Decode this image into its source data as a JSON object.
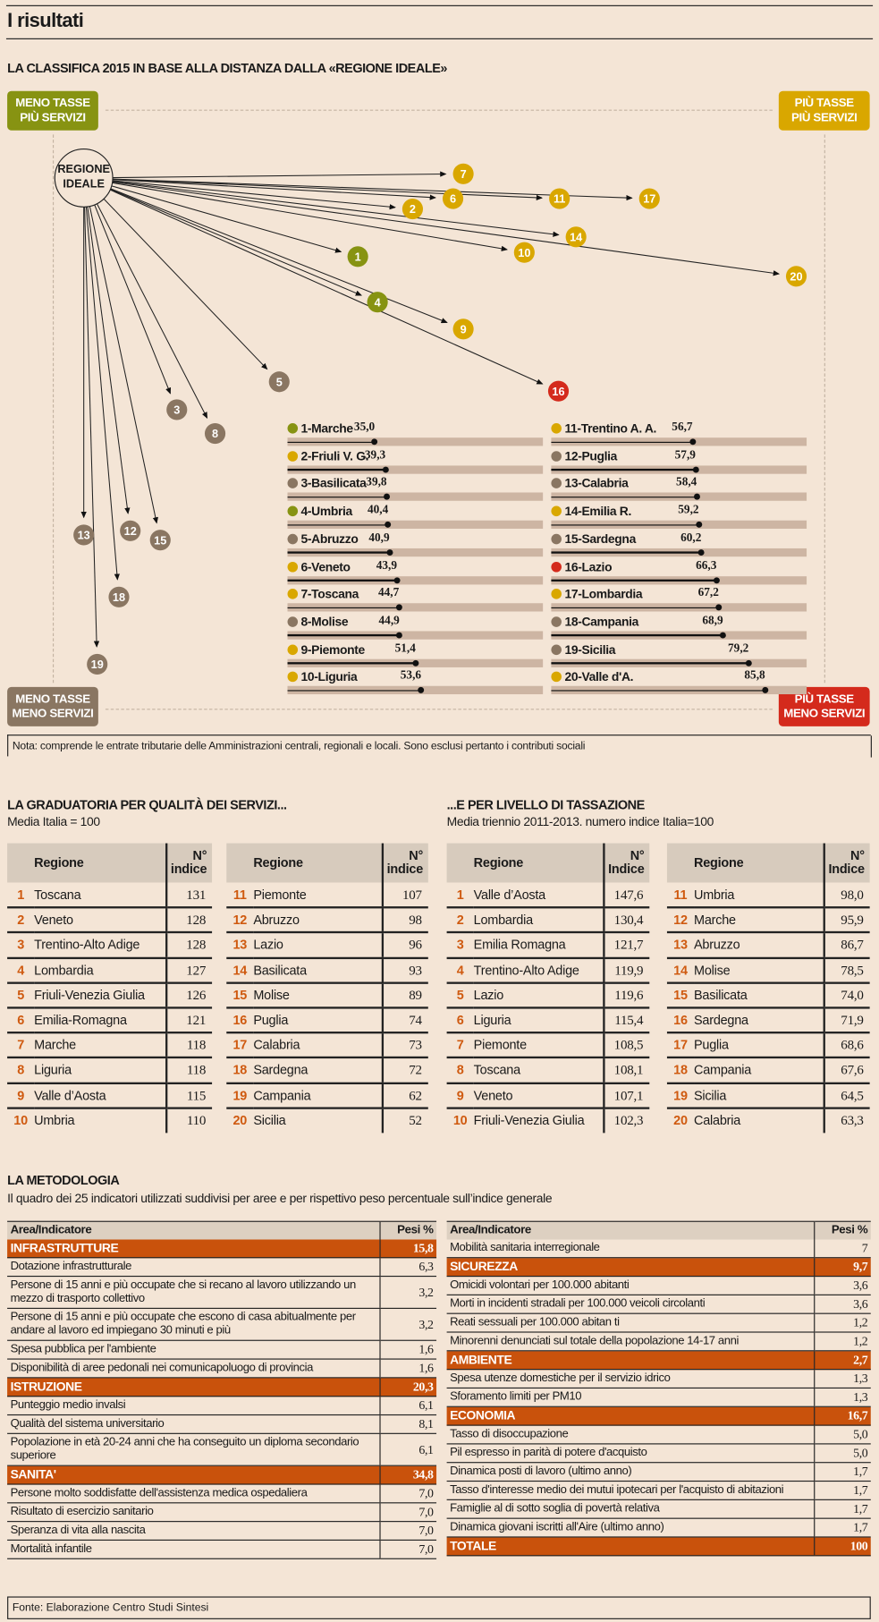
{
  "header": {
    "title": "I risultati"
  },
  "classifica": {
    "title": "LA CLASSIFICA 2015 IN BASE ALLA DISTANZA DALLA «REGIONE IDEALE»",
    "origin_label": [
      "REGIONE",
      "IDEALE"
    ],
    "corners": {
      "top_left": {
        "line1": "MENO TASSE",
        "line2": "PIÙ SERVIZI",
        "color": "#879312"
      },
      "top_right": {
        "line1": "PIÙ TASSE",
        "line2": "PIÙ SERVIZI",
        "color": "#d9a700"
      },
      "bottom_left": {
        "line1": "MENO TASSE",
        "line2": "MENO SERVIZI",
        "color": "#8a7662"
      },
      "bottom_right": {
        "line1": "PIÙ TASSE",
        "line2": "MENO SERVIZI",
        "color": "#d42a1c"
      }
    },
    "colors": {
      "olive": "#879312",
      "yellow": "#d9a700",
      "brown": "#8a7662",
      "red": "#d42a1c"
    },
    "note": "Nota: comprende le entrate tributarie delle Amministrazioni centrali, regionali e locali. Sono esclusi pertanto i contributi sociali"
  },
  "chart_data": {
    "type": "bar",
    "title": "LA CLASSIFICA 2015 IN BASE ALLA DISTANZA DALLA «REGIONE IDEALE»",
    "ylim": [
      0,
      100
    ],
    "series": [
      {
        "rank": 1,
        "label": "1-Marche",
        "value": 35.0,
        "display": "35,0",
        "group": "olive"
      },
      {
        "rank": 2,
        "label": "2-Friuli V. G.",
        "value": 39.3,
        "display": "39,3",
        "group": "yellow"
      },
      {
        "rank": 3,
        "label": "3-Basilicata",
        "value": 39.8,
        "display": "39,8",
        "group": "brown"
      },
      {
        "rank": 4,
        "label": "4-Umbria",
        "value": 40.4,
        "display": "40,4",
        "group": "olive"
      },
      {
        "rank": 5,
        "label": "5-Abruzzo",
        "value": 40.9,
        "display": "40,9",
        "group": "brown"
      },
      {
        "rank": 6,
        "label": "6-Veneto",
        "value": 43.9,
        "display": "43,9",
        "group": "yellow"
      },
      {
        "rank": 7,
        "label": "7-Toscana",
        "value": 44.7,
        "display": "44,7",
        "group": "yellow"
      },
      {
        "rank": 8,
        "label": "8-Molise",
        "value": 44.9,
        "display": "44,9",
        "group": "brown"
      },
      {
        "rank": 9,
        "label": "9-Piemonte",
        "value": 51.4,
        "display": "51,4",
        "group": "yellow"
      },
      {
        "rank": 10,
        "label": "10-Liguria",
        "value": 53.6,
        "display": "53,6",
        "group": "yellow"
      },
      {
        "rank": 11,
        "label": "11-Trentino A. A.",
        "value": 56.7,
        "display": "56,7",
        "group": "yellow"
      },
      {
        "rank": 12,
        "label": "12-Puglia",
        "value": 57.9,
        "display": "57,9",
        "group": "brown"
      },
      {
        "rank": 13,
        "label": "13-Calabria",
        "value": 58.4,
        "display": "58,4",
        "group": "brown"
      },
      {
        "rank": 14,
        "label": "14-Emilia R.",
        "value": 59.2,
        "display": "59,2",
        "group": "yellow"
      },
      {
        "rank": 15,
        "label": "15-Sardegna",
        "value": 60.2,
        "display": "60,2",
        "group": "brown"
      },
      {
        "rank": 16,
        "label": "16-Lazio",
        "value": 66.3,
        "display": "66,3",
        "group": "red"
      },
      {
        "rank": 17,
        "label": "17-Lombardia",
        "value": 67.2,
        "display": "67,2",
        "group": "yellow"
      },
      {
        "rank": 18,
        "label": "18-Campania",
        "value": 68.9,
        "display": "68,9",
        "group": "brown"
      },
      {
        "rank": 19,
        "label": "19-Sicilia",
        "value": 79.2,
        "display": "79,2",
        "group": "brown"
      },
      {
        "rank": 20,
        "label": "20-Valle d'A.",
        "value": 85.8,
        "display": "85,8",
        "group": "yellow"
      }
    ]
  },
  "servizi": {
    "title": "LA GRADUATORIA PER QUALITÀ DEI SERVIZI...",
    "subtitle": "Media Italia = 100",
    "col_region": "Regione",
    "col_index": "N° indice",
    "rows": [
      [
        "1",
        "Toscana",
        "131"
      ],
      [
        "2",
        "Veneto",
        "128"
      ],
      [
        "3",
        "Trentino-Alto Adige",
        "128"
      ],
      [
        "4",
        "Lombardia",
        "127"
      ],
      [
        "5",
        "Friuli-Venezia Giulia",
        "126"
      ],
      [
        "6",
        "Emilia-Romagna",
        "121"
      ],
      [
        "7",
        "Marche",
        "118"
      ],
      [
        "8",
        "Liguria",
        "118"
      ],
      [
        "9",
        "Valle d’Aosta",
        "115"
      ],
      [
        "10",
        "Umbria",
        "110"
      ],
      [
        "11",
        "Piemonte",
        "107"
      ],
      [
        "12",
        "Abruzzo",
        "98"
      ],
      [
        "13",
        "Lazio",
        "96"
      ],
      [
        "14",
        "Basilicata",
        "93"
      ],
      [
        "15",
        "Molise",
        "89"
      ],
      [
        "16",
        "Puglia",
        "74"
      ],
      [
        "17",
        "Calabria",
        "73"
      ],
      [
        "18",
        "Sardegna",
        "72"
      ],
      [
        "19",
        "Campania",
        "62"
      ],
      [
        "20",
        "Sicilia",
        "52"
      ]
    ]
  },
  "tasse": {
    "title": "...E PER LIVELLO DI TASSAZIONE",
    "subtitle": "Media triennio 2011-2013. numero indice Italia=100",
    "col_region": "Regione",
    "col_index": "N° Indice",
    "rows": [
      [
        "1",
        "Valle d’Aosta",
        "147,6"
      ],
      [
        "2",
        "Lombardia",
        "130,4"
      ],
      [
        "3",
        "Emilia Romagna",
        "121,7"
      ],
      [
        "4",
        "Trentino-Alto Adige",
        "119,9"
      ],
      [
        "5",
        "Lazio",
        "119,6"
      ],
      [
        "6",
        "Liguria",
        "115,4"
      ],
      [
        "7",
        "Piemonte",
        "108,5"
      ],
      [
        "8",
        "Toscana",
        "108,1"
      ],
      [
        "9",
        "Veneto",
        "107,1"
      ],
      [
        "10",
        "Friuli-Venezia Giulia",
        "102,3"
      ],
      [
        "11",
        "Umbria",
        "98,0"
      ],
      [
        "12",
        "Marche",
        "95,9"
      ],
      [
        "13",
        "Abruzzo",
        "86,7"
      ],
      [
        "14",
        "Molise",
        "78,5"
      ],
      [
        "15",
        "Basilicata",
        "74,0"
      ],
      [
        "16",
        "Sardegna",
        "71,9"
      ],
      [
        "17",
        "Puglia",
        "68,6"
      ],
      [
        "18",
        "Campania",
        "67,6"
      ],
      [
        "19",
        "Sicilia",
        "64,5"
      ],
      [
        "20",
        "Calabria",
        "63,3"
      ]
    ]
  },
  "metodologia": {
    "title": "LA METODOLOGIA",
    "subtitle": "Il quadro dei 25 indicatori utilizzati suddivisi per aree e per rispettivo peso percentuale sull’indice generale",
    "col_area": "Area/Indicatore",
    "col_pesi": "Pesi %",
    "left": [
      {
        "cat": true,
        "label": "INFRASTRUTTURE",
        "value": "15,8"
      },
      {
        "label": "Dotazione infrastrutturale",
        "value": "6,3"
      },
      {
        "label": "Persone di 15 anni e più occupate che si recano al lavoro utilizzando un mezzo di trasporto collettivo",
        "value": "3,2"
      },
      {
        "label": "Persone di 15 anni e più occupate  che escono di casa abitualmente per andare al lavoro ed impiegano 30 minuti e più",
        "value": "3,2"
      },
      {
        "label": "Spesa pubblica per l'ambiente",
        "value": "1,6"
      },
      {
        "label": "Disponibilità di aree pedonali nei comunicapoluogo di provincia",
        "value": "1,6"
      },
      {
        "cat": true,
        "label": "ISTRUZIONE",
        "value": "20,3"
      },
      {
        "label": "Punteggio medio invalsi",
        "value": "6,1"
      },
      {
        "label": "Qualità del sistema universitario",
        "value": "8,1"
      },
      {
        "label": "Popolazione in età 20-24 anni che ha conseguito un diploma secondario superiore",
        "value": "6,1"
      },
      {
        "cat": true,
        "label": "SANITA'",
        "value": "34,8"
      },
      {
        "label": "Persone molto soddisfatte dell'assistenza medica ospedaliera",
        "value": "7,0"
      },
      {
        "label": "Risultato di esercizio sanitario",
        "value": "7,0"
      },
      {
        "label": "Speranza di vita alla nascita",
        "value": "7,0"
      },
      {
        "label": "Mortalità infantile",
        "value": "7,0"
      }
    ],
    "right": [
      {
        "label": "Mobilità sanitaria interregionale",
        "value": "7"
      },
      {
        "cat": true,
        "label": "SICUREZZA",
        "value": "9,7"
      },
      {
        "label": "Omicidi volontari per 100.000 abitanti",
        "value": "3,6"
      },
      {
        "label": "Morti in incidenti stradali per 100.000 veicoli circolanti",
        "value": "3,6"
      },
      {
        "label": "Reati sessuali per 100.000 abitan ti",
        "value": "1,2"
      },
      {
        "label": "Minorenni denunciati sul totale della popolazione 14-17 anni",
        "value": "1,2"
      },
      {
        "cat": true,
        "label": "AMBIENTE",
        "value": "2,7"
      },
      {
        "label": "Spesa utenze domestiche per il servizio idrico",
        "value": "1,3"
      },
      {
        "label": "Sforamento limiti per PM10",
        "value": "1,3"
      },
      {
        "cat": true,
        "label": "ECONOMIA",
        "value": "16,7"
      },
      {
        "label": "Tasso di disoccupazione",
        "value": "5,0"
      },
      {
        "label": "Pil espresso in parità di potere d'acquisto",
        "value": "5,0"
      },
      {
        "label": "Dinamica posti di lavoro (ultimo anno)",
        "value": "1,7"
      },
      {
        "label": "Tasso d'interesse medio dei mutui ipotecari per l'acquisto di abitazioni",
        "value": "1,7"
      },
      {
        "label": "Famiglie al di sotto soglia di povertà relativa",
        "value": "1,7"
      },
      {
        "label": "Dinamica giovani iscritti all'Aire (ultimo anno)",
        "value": "1,7"
      },
      {
        "cat": true,
        "label": "TOTALE",
        "value": "100"
      }
    ]
  },
  "footer": {
    "source": "Fonte: Elaborazione Centro Studi Sintesi"
  }
}
